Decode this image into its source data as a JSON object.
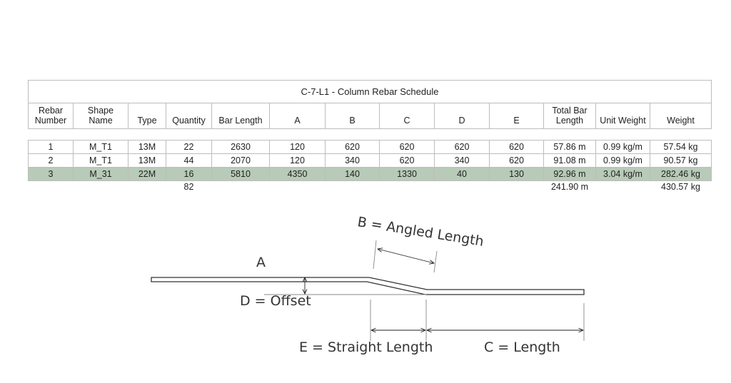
{
  "schedule": {
    "title": "C-7-L1 - Column Rebar Schedule",
    "headers": [
      "Rebar Number",
      "Shape Name",
      "Type",
      "Quantity",
      "Bar Length",
      "A",
      "B",
      "C",
      "D",
      "E",
      "Total Bar Length",
      "Unit Weight",
      "Weight"
    ],
    "rows": [
      [
        "1",
        "M_T1",
        "13M",
        "22",
        "2630",
        "120",
        "620",
        "620",
        "620",
        "620",
        "57.86 m",
        "0.99 kg/m",
        "57.54 kg"
      ],
      [
        "2",
        "M_T1",
        "13M",
        "44",
        "2070",
        "120",
        "340",
        "620",
        "340",
        "620",
        "91.08 m",
        "0.99 kg/m",
        "90.57 kg"
      ],
      [
        "3",
        "M_31",
        "22M",
        "16",
        "5810",
        "4350",
        "140",
        "1330",
        "40",
        "130",
        "92.96 m",
        "3.04 kg/m",
        "282.46 kg"
      ]
    ],
    "highlighted_row": 3,
    "highlight_color": "#b8cab8",
    "totals": {
      "quantity": "82",
      "total_bar_length": "241.90 m",
      "weight": "430.57 kg"
    }
  },
  "diagram": {
    "label_a": "A",
    "label_b": "B = Angled Length",
    "label_c": "C = Length",
    "label_d": "D = Offset",
    "label_e": "E = Straight Length"
  }
}
